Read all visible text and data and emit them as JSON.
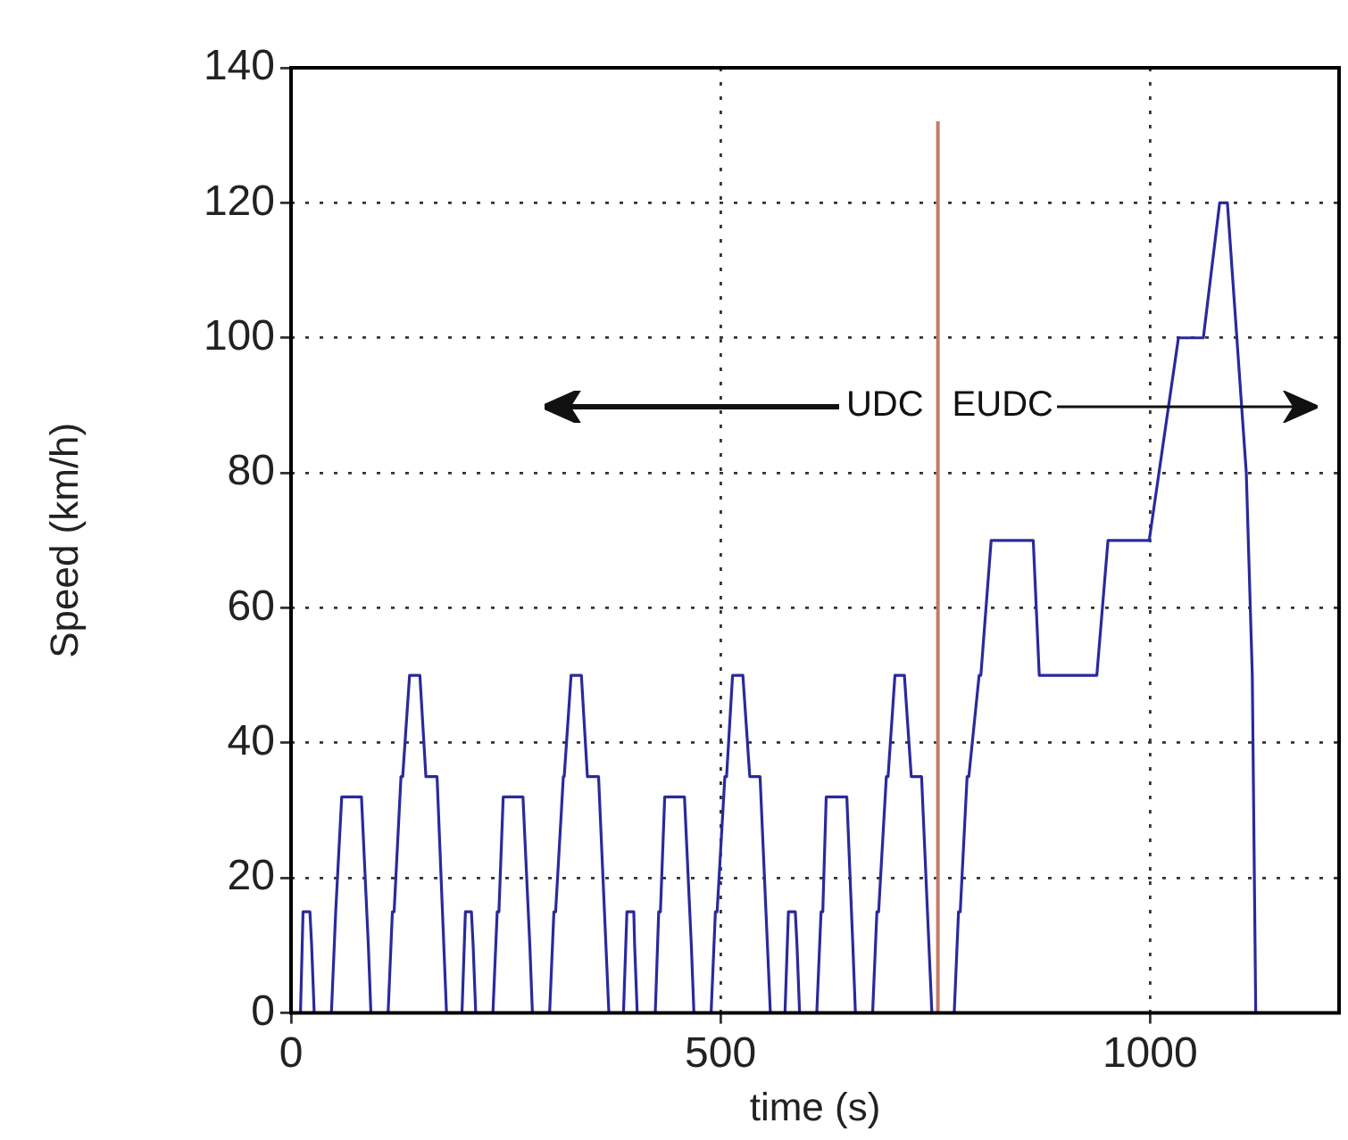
{
  "chart_data": {
    "type": "line",
    "xlabel": "time (s)",
    "ylabel": "Speed (km/h)",
    "xlim": [
      0,
      1220
    ],
    "xticks": [
      0,
      500,
      1000
    ],
    "ylim": [
      0,
      140
    ],
    "yticks": [
      0,
      20,
      40,
      60,
      80,
      100,
      120,
      140
    ],
    "grid": true,
    "legend": false,
    "marker": "none",
    "line_style": "solid",
    "series": [
      {
        "color": "#2a2a9c",
        "x": [
          0,
          11,
          14,
          22,
          24,
          27,
          47,
          52,
          54,
          59,
          82,
          90,
          93,
          113,
          118,
          120,
          128,
          130,
          138,
          150,
          157,
          170,
          181,
          188,
          199,
          203,
          210,
          212,
          215,
          235,
          240,
          242,
          247,
          270,
          278,
          281,
          301,
          306,
          308,
          317,
          318,
          326,
          338,
          345,
          358,
          370,
          376,
          387,
          391,
          399,
          400,
          403,
          424,
          428,
          430,
          435,
          458,
          466,
          469,
          489,
          494,
          496,
          505,
          507,
          514,
          526,
          534,
          546,
          558,
          565,
          575,
          579,
          587,
          589,
          592,
          612,
          617,
          619,
          623,
          647,
          654,
          657,
          677,
          682,
          684,
          693,
          695,
          703,
          714,
          722,
          734,
          746,
          753,
          772,
          777,
          779,
          787,
          789,
          801,
          803,
          815,
          864,
          871,
          938,
          951,
          999,
          1033,
          1062,
          1081,
          1090,
          1112,
          1119,
          1123
        ],
        "values": [
          0,
          0,
          15,
          15,
          10,
          0,
          0,
          15,
          15,
          32,
          32,
          10,
          0,
          0,
          15,
          15,
          35,
          35,
          50,
          50,
          35,
          35,
          0,
          0,
          0,
          15,
          15,
          10,
          0,
          0,
          15,
          15,
          32,
          32,
          10,
          0,
          0,
          15,
          15,
          35,
          35,
          50,
          50,
          35,
          35,
          0,
          0,
          0,
          15,
          15,
          10,
          0,
          0,
          15,
          15,
          32,
          32,
          10,
          0,
          0,
          15,
          15,
          35,
          35,
          50,
          50,
          35,
          35,
          0,
          0,
          0,
          15,
          15,
          10,
          0,
          0,
          15,
          15,
          32,
          32,
          10,
          0,
          0,
          15,
          15,
          35,
          35,
          50,
          50,
          35,
          35,
          0,
          0,
          0,
          15,
          15,
          35,
          35,
          50,
          50,
          70,
          70,
          50,
          50,
          70,
          70,
          100,
          100,
          120,
          120,
          80,
          50,
          0
        ]
      }
    ],
    "ref_lines": [
      {
        "axis": "x",
        "value": 753,
        "color": "#c47a6a"
      }
    ],
    "annotations": [
      "UDC",
      "EUDC"
    ]
  }
}
